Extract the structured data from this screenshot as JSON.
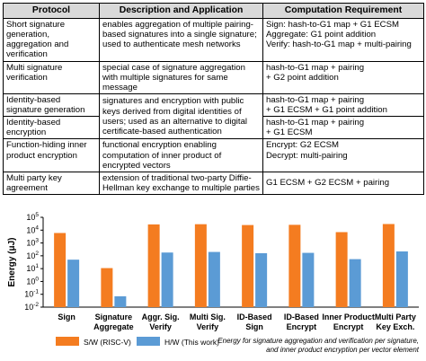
{
  "table": {
    "headers": [
      "Protocol",
      "Description and Application",
      "Computation Requirement"
    ],
    "rows": [
      {
        "protocol": "Short signature generation, aggregation and verification",
        "description": "enables aggregation of multiple pairing-based signatures into a single signature; used to authenticate mesh networks",
        "computation": "Sign: hash-to-G1 map + G1 ECSM\nAggregate: G1 point addition\nVerify: hash-to-G1 map + multi-pairing"
      },
      {
        "protocol": "Multi signature verification",
        "description": "special case of signature aggregation with multiple signatures for same message",
        "computation": "hash-to-G1 map + pairing\n+ G2 point addition"
      },
      {
        "protocol": "Identity-based signature generation",
        "computation": "hash-to-G1 map + pairing\n+ G1 ECSM + G1 point addition"
      },
      {
        "protocol": "Identity-based encryption",
        "computation": "hash-to-G1 map + pairing\n+ G1 ECSM"
      },
      {
        "protocol": "Function-hiding inner product encryption",
        "description": "functional encryption enabling computation of inner product of encrypted vectors",
        "computation": "Encrypt: G2 ECSM\nDecrypt: multi-pairing"
      },
      {
        "protocol": "Multi party key agreement",
        "description": "extension of traditional two-party Diffie-Hellman key exchange to multiple parties",
        "computation": "G1 ECSM + G2 ECSM + pairing"
      }
    ],
    "merged_description_rows_3_4": "signatures and encryption with public keys derived from digital identities of users; used as an alternative to digital certificate-based authentication"
  },
  "chart_data": {
    "type": "bar",
    "ylabel": "Energy (μJ)",
    "yscale": "log",
    "ylim": [
      0.01,
      100000
    ],
    "yticks": [
      "10^-2",
      "10^-1",
      "10^0",
      "10^1",
      "10^2",
      "10^3",
      "10^4",
      "10^5"
    ],
    "categories": [
      "Sign",
      "Signature Aggregate",
      "Aggr. Sig. Verify",
      "Multi Sig. Verify",
      "ID-Based Sign",
      "ID-Based Encrypt",
      "Inner Product Encrypt",
      "Multi Party Key Exch."
    ],
    "series": [
      {
        "name": "S/W (RISC-V)",
        "color": "#f47c20",
        "values": [
          6000,
          11,
          28000,
          29000,
          25000,
          26000,
          7000,
          30000
        ]
      },
      {
        "name": "H/W (This work)",
        "color": "#5b9bd5",
        "values": [
          50,
          0.07,
          180,
          200,
          160,
          170,
          55,
          220
        ]
      }
    ],
    "grid": false,
    "legend_position": "bottom-left",
    "caption": [
      "Energy for signature aggregation and verification per signature,",
      "and inner product encryption per vector element"
    ]
  }
}
